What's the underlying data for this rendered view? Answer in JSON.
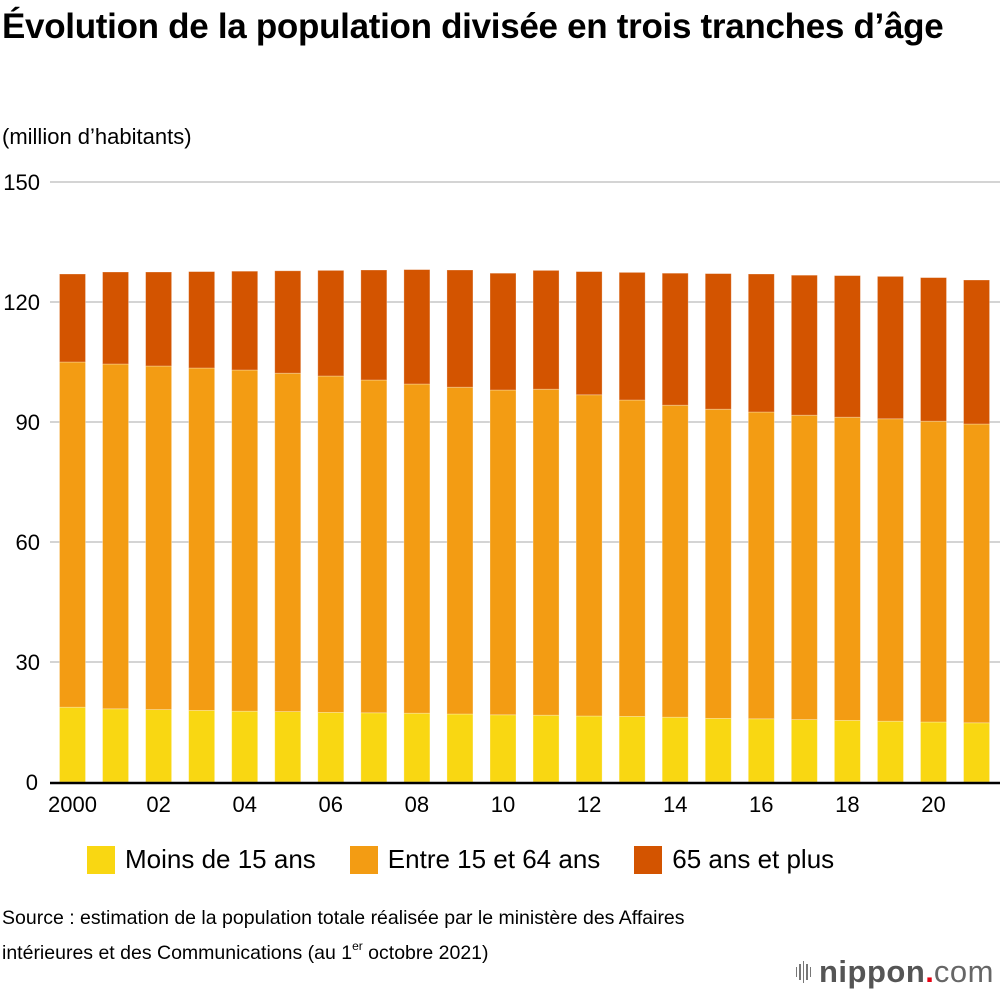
{
  "title": "Évolution de la population divisée en trois tranches d’âge",
  "unit_label": "(million d’habitants)",
  "chart_data": {
    "type": "bar",
    "stacked": true,
    "title": "Évolution de la population divisée en trois tranches d’âge",
    "ylabel": "(million d’habitants)",
    "xlabel": "",
    "ylim": [
      0,
      150
    ],
    "yticks": [
      0,
      30,
      60,
      90,
      120,
      150
    ],
    "grid": true,
    "legend_position": "bottom",
    "categories": [
      "2000",
      "2001",
      "2002",
      "2003",
      "2004",
      "2005",
      "2006",
      "2007",
      "2008",
      "2009",
      "2010",
      "2011",
      "2012",
      "2013",
      "2014",
      "2015",
      "2016",
      "2017",
      "2018",
      "2019",
      "2020",
      "2021"
    ],
    "xtick_labels": [
      "2000",
      "",
      "02",
      "",
      "04",
      "",
      "06",
      "",
      "08",
      "",
      "10",
      "",
      "12",
      "",
      "14",
      "",
      "16",
      "",
      "18",
      "",
      "20",
      ""
    ],
    "series": [
      {
        "name": "Moins de 15 ans",
        "color": "#f9d712",
        "values": [
          18.7,
          18.3,
          18.1,
          17.9,
          17.7,
          17.6,
          17.4,
          17.3,
          17.2,
          17.0,
          16.8,
          16.7,
          16.5,
          16.4,
          16.2,
          15.9,
          15.8,
          15.6,
          15.4,
          15.2,
          15.0,
          14.8
        ]
      },
      {
        "name": "Entre 15 et 64 ans",
        "color": "#f39c13",
        "values": [
          86.3,
          86.2,
          85.9,
          85.6,
          85.3,
          84.6,
          84.1,
          83.2,
          82.3,
          81.7,
          81.2,
          81.5,
          80.3,
          79.1,
          78.0,
          77.3,
          76.7,
          76.1,
          75.8,
          75.6,
          75.2,
          74.7
        ]
      },
      {
        "name": "65 ans et plus",
        "color": "#d35400",
        "values": [
          22.0,
          23.0,
          23.5,
          24.1,
          24.7,
          25.6,
          26.4,
          27.5,
          28.6,
          29.3,
          29.2,
          29.7,
          30.8,
          31.9,
          33.0,
          33.9,
          34.5,
          35.0,
          35.4,
          35.6,
          35.9,
          36.0
        ]
      }
    ]
  },
  "legend": [
    {
      "label": "Moins de 15 ans",
      "color": "#f9d712"
    },
    {
      "label": "Entre 15 et 64 ans",
      "color": "#f39c13"
    },
    {
      "label": "65 ans et plus",
      "color": "#d35400"
    }
  ],
  "source": {
    "text_before": "Source : estimation de la population totale réalisée par le ministère des Affaires intérieures et des Communications (au 1",
    "superscript": "er",
    "text_after": " octobre 2021)"
  },
  "logo": {
    "main": "nippon",
    "dot": ".",
    "suffix": "com",
    "dot_color": "#e60012"
  }
}
